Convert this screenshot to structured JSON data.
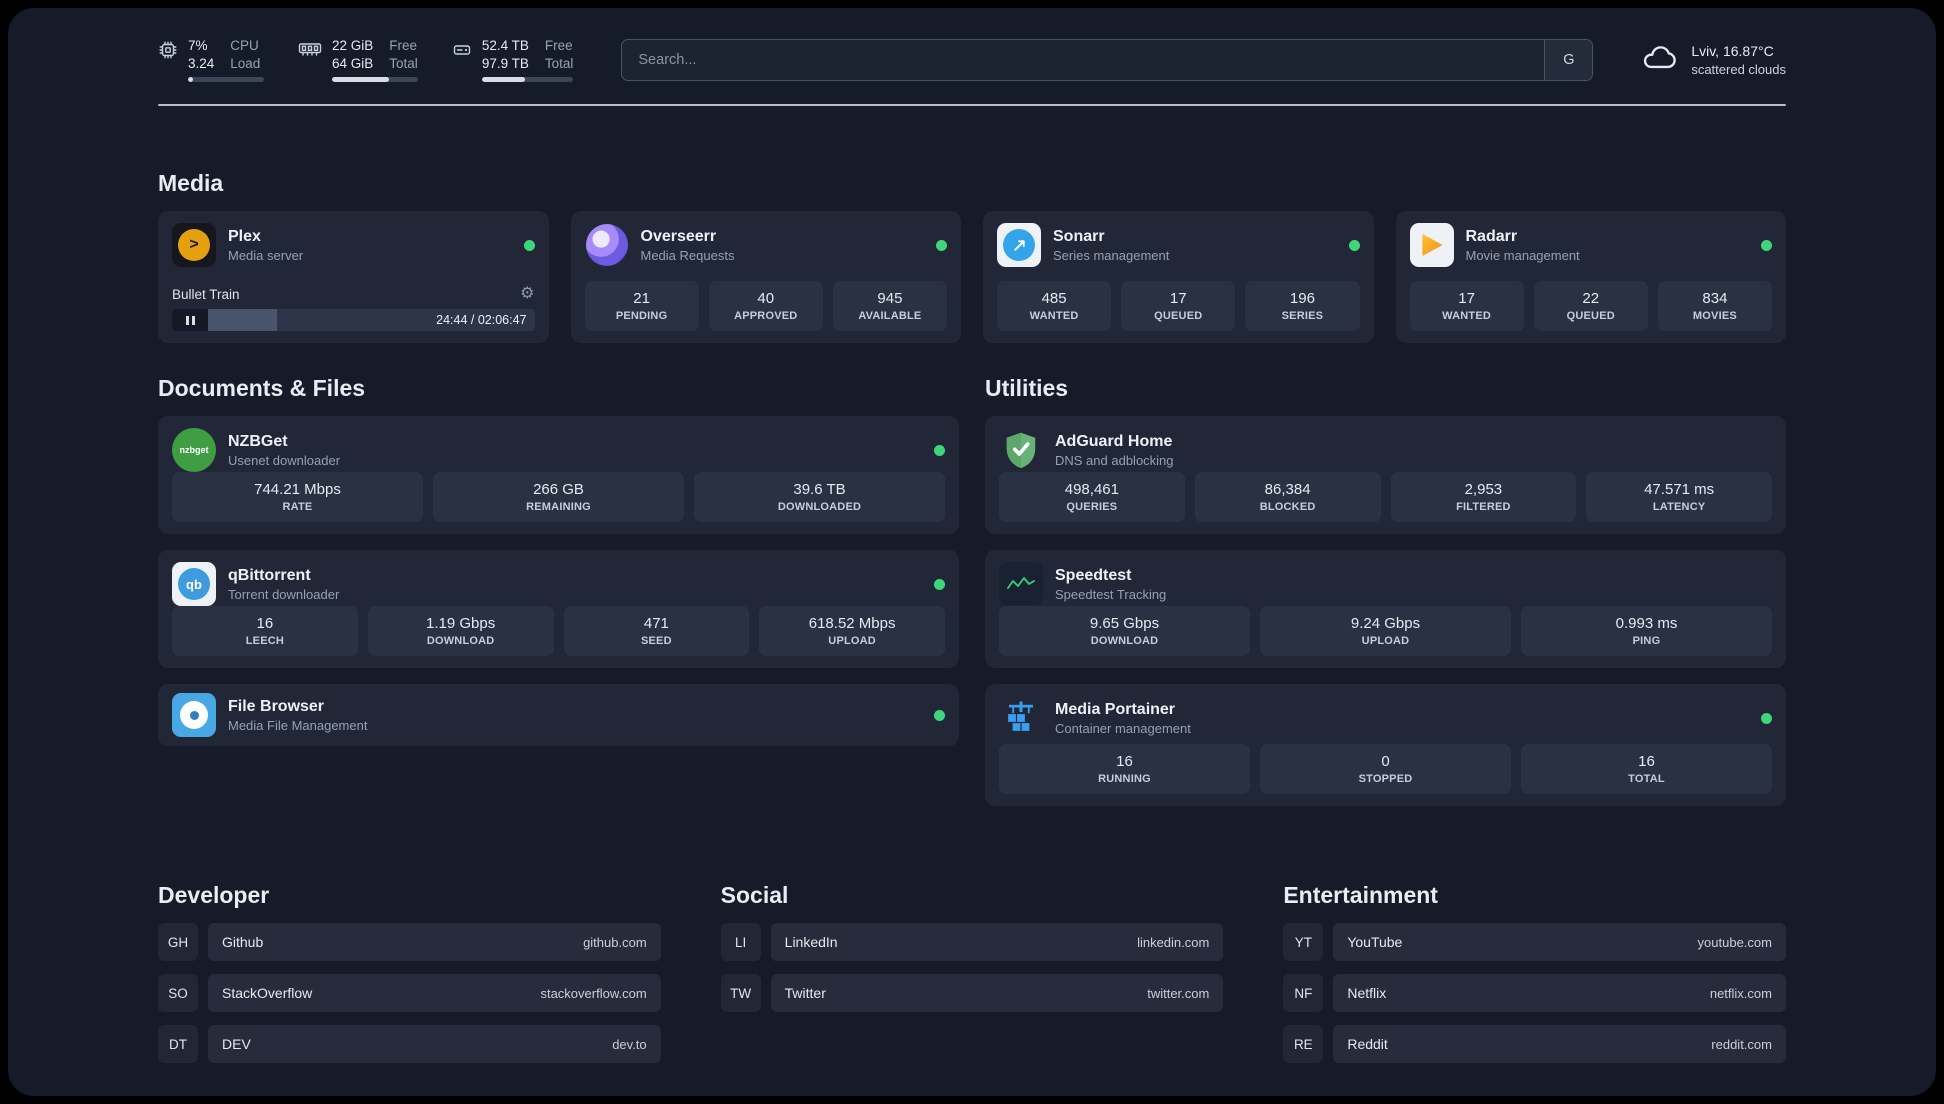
{
  "topbar": {
    "cpu": {
      "percent": "7%",
      "load": "3.24",
      "label_line1": "CPU",
      "label_line2": "Load",
      "bar_percent": 7
    },
    "ram": {
      "value_line1": "22 GiB",
      "value_line2": "64 GiB",
      "label_line1": "Free",
      "label_line2": "Total",
      "bar_percent": 66
    },
    "disk": {
      "value_line1": "52.4 TB",
      "value_line2": "97.9 TB",
      "label_line1": "Free",
      "label_line2": "Total",
      "bar_percent": 47
    },
    "search": {
      "placeholder": "Search...",
      "engine_button": "G"
    },
    "weather": {
      "location": "Lviv, 16.87°C",
      "condition": "scattered clouds"
    }
  },
  "sections": {
    "media": {
      "title": "Media",
      "cards": [
        {
          "title": "Plex",
          "subtitle": "Media server",
          "status": "online",
          "player": {
            "track": "Bullet Train",
            "time": "24:44 / 02:06:47",
            "progress_percent": 19
          }
        },
        {
          "title": "Overseerr",
          "subtitle": "Media Requests",
          "status": "online",
          "stats": [
            {
              "value": "21",
              "label": "PENDING"
            },
            {
              "value": "40",
              "label": "APPROVED"
            },
            {
              "value": "945",
              "label": "AVAILABLE"
            }
          ]
        },
        {
          "title": "Sonarr",
          "subtitle": "Series management",
          "status": "online",
          "stats": [
            {
              "value": "485",
              "label": "WANTED"
            },
            {
              "value": "17",
              "label": "QUEUED"
            },
            {
              "value": "196",
              "label": "SERIES"
            }
          ]
        },
        {
          "title": "Radarr",
          "subtitle": "Movie management",
          "status": "online",
          "stats": [
            {
              "value": "17",
              "label": "WANTED"
            },
            {
              "value": "22",
              "label": "QUEUED"
            },
            {
              "value": "834",
              "label": "MOVIES"
            }
          ]
        }
      ]
    },
    "documents": {
      "title": "Documents & Files",
      "cards": [
        {
          "title": "NZBGet",
          "subtitle": "Usenet downloader",
          "status": "online",
          "stats": [
            {
              "value": "744.21 Mbps",
              "label": "RATE"
            },
            {
              "value": "266 GB",
              "label": "REMAINING"
            },
            {
              "value": "39.6 TB",
              "label": "DOWNLOADED"
            }
          ]
        },
        {
          "title": "qBittorrent",
          "subtitle": "Torrent downloader",
          "status": "online",
          "stats": [
            {
              "value": "16",
              "label": "LEECH"
            },
            {
              "value": "1.19 Gbps",
              "label": "DOWNLOAD"
            },
            {
              "value": "471",
              "label": "SEED"
            },
            {
              "value": "618.52 Mbps",
              "label": "UPLOAD"
            }
          ]
        },
        {
          "title": "File Browser",
          "subtitle": "Media File Management",
          "status": "online"
        }
      ]
    },
    "utilities": {
      "title": "Utilities",
      "cards": [
        {
          "title": "AdGuard Home",
          "subtitle": "DNS and adblocking",
          "stats": [
            {
              "value": "498,461",
              "label": "QUERIES"
            },
            {
              "value": "86,384",
              "label": "BLOCKED"
            },
            {
              "value": "2,953",
              "label": "FILTERED"
            },
            {
              "value": "47.571 ms",
              "label": "LATENCY"
            }
          ]
        },
        {
          "title": "Speedtest",
          "subtitle": "Speedtest Tracking",
          "stats": [
            {
              "value": "9.65 Gbps",
              "label": "DOWNLOAD"
            },
            {
              "value": "9.24 Gbps",
              "label": "UPLOAD"
            },
            {
              "value": "0.993 ms",
              "label": "PING"
            }
          ]
        },
        {
          "title": "Media Portainer",
          "subtitle": "Container management",
          "status": "online",
          "stats": [
            {
              "value": "16",
              "label": "RUNNING"
            },
            {
              "value": "0",
              "label": "STOPPED"
            },
            {
              "value": "16",
              "label": "TOTAL"
            }
          ]
        }
      ]
    }
  },
  "links": {
    "developer": {
      "title": "Developer",
      "items": [
        {
          "abbr": "GH",
          "name": "Github",
          "url": "github.com"
        },
        {
          "abbr": "SO",
          "name": "StackOverflow",
          "url": "stackoverflow.com"
        },
        {
          "abbr": "DT",
          "name": "DEV",
          "url": "dev.to"
        }
      ]
    },
    "social": {
      "title": "Social",
      "items": [
        {
          "abbr": "LI",
          "name": "LinkedIn",
          "url": "linkedin.com"
        },
        {
          "abbr": "TW",
          "name": "Twitter",
          "url": "twitter.com"
        }
      ]
    },
    "entertainment": {
      "title": "Entertainment",
      "items": [
        {
          "abbr": "YT",
          "name": "YouTube",
          "url": "youtube.com"
        },
        {
          "abbr": "NF",
          "name": "Netflix",
          "url": "netflix.com"
        },
        {
          "abbr": "RE",
          "name": "Reddit",
          "url": "reddit.com"
        }
      ]
    }
  },
  "icons": {
    "nzbget_text": "nzbget",
    "qbittorrent_text": "qb",
    "plex_glyph": ">"
  },
  "colors": {
    "status_online": "#3ed67b",
    "plex_accent": "#e5a00d",
    "overseerr_accent": "#6d5ae0",
    "sonarr_accent": "#33a4ea",
    "radarr_accent": "#f08c0f",
    "nzbget_accent": "#3f9e44",
    "qbittorrent_accent": "#3f9be0",
    "filebrowser_accent": "#47a8e5",
    "adguard_accent": "#67b279",
    "speedtest_accent": "#35d07f",
    "portainer_accent": "#3a9ff1"
  }
}
